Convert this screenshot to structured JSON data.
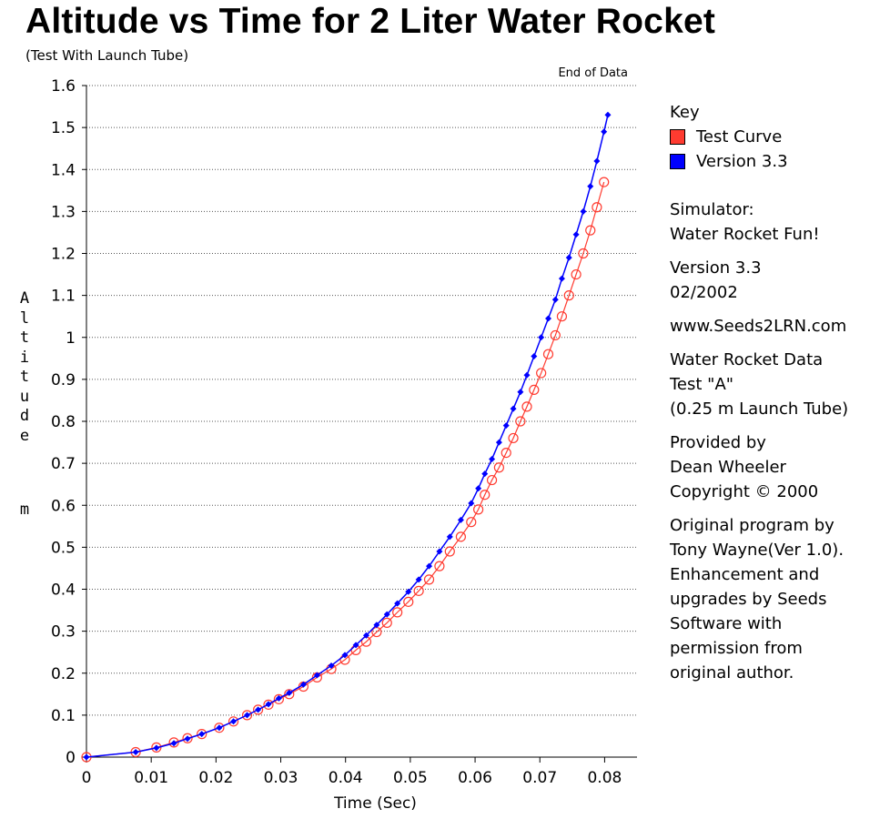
{
  "chart_data": {
    "type": "scatter",
    "title": "Altitude vs Time for 2 Liter Water Rocket",
    "subtitle": "(Test With Launch Tube)",
    "xlabel": "Time (Sec)",
    "ylabel": "Altitude",
    "yunit": "m",
    "xlim": [
      0,
      0.085
    ],
    "ylim": [
      0,
      1.6
    ],
    "xticks": [
      "0",
      "0.01",
      "0.02",
      "0.03",
      "0.04",
      "0.05",
      "0.06",
      "0.07",
      "0.08"
    ],
    "yticks": [
      "0",
      "0.1",
      "0.2",
      "0.3",
      "0.4",
      "0.5",
      "0.6",
      "0.7",
      "0.8",
      "0.9",
      "1",
      "1.1",
      "1.2",
      "1.3",
      "1.4",
      "1.5",
      "1.6"
    ],
    "grid": "horizontal dotted",
    "annotation": "End of Data",
    "legend_title": "Key",
    "legend_position": "right",
    "series": [
      {
        "name": "Test Curve",
        "color": "#ff3b30",
        "marker": "open-circle",
        "x": [
          0,
          0.0076,
          0.0108,
          0.0135,
          0.0156,
          0.0178,
          0.0205,
          0.0227,
          0.0248,
          0.0265,
          0.0281,
          0.0297,
          0.0313,
          0.0335,
          0.0356,
          0.0378,
          0.0399,
          0.0416,
          0.0432,
          0.0448,
          0.0464,
          0.048,
          0.0497,
          0.0513,
          0.0529,
          0.0545,
          0.0561,
          0.0578,
          0.0594,
          0.0605,
          0.0615,
          0.0626,
          0.0637,
          0.0648,
          0.0659,
          0.067,
          0.068,
          0.0691,
          0.0702,
          0.0713,
          0.0724,
          0.0734,
          0.0745,
          0.0756,
          0.0767,
          0.0778,
          0.0788,
          0.0799
        ],
        "y": [
          0,
          0.012,
          0.023,
          0.035,
          0.045,
          0.055,
          0.07,
          0.085,
          0.1,
          0.113,
          0.125,
          0.138,
          0.15,
          0.168,
          0.19,
          0.21,
          0.232,
          0.255,
          0.275,
          0.298,
          0.32,
          0.345,
          0.37,
          0.396,
          0.423,
          0.455,
          0.49,
          0.525,
          0.56,
          0.59,
          0.625,
          0.66,
          0.69,
          0.725,
          0.76,
          0.8,
          0.835,
          0.875,
          0.915,
          0.96,
          1.005,
          1.05,
          1.1,
          1.15,
          1.2,
          1.255,
          1.31,
          1.37
        ]
      },
      {
        "name": "Version 3.3",
        "color": "#0000ff",
        "marker": "filled-diamond",
        "x": [
          0,
          0.0076,
          0.0108,
          0.0135,
          0.0156,
          0.0178,
          0.0205,
          0.0227,
          0.0248,
          0.0265,
          0.0281,
          0.0297,
          0.0313,
          0.0335,
          0.0356,
          0.0378,
          0.0399,
          0.0416,
          0.0432,
          0.0448,
          0.0464,
          0.048,
          0.0497,
          0.0513,
          0.0529,
          0.0545,
          0.0561,
          0.0578,
          0.0594,
          0.0605,
          0.0615,
          0.0626,
          0.0637,
          0.0648,
          0.0659,
          0.067,
          0.068,
          0.0691,
          0.0702,
          0.0713,
          0.0724,
          0.0734,
          0.0745,
          0.0756,
          0.0767,
          0.0778,
          0.0788,
          0.0799,
          0.0805
        ],
        "y": [
          0,
          0.012,
          0.022,
          0.033,
          0.044,
          0.055,
          0.07,
          0.085,
          0.1,
          0.113,
          0.126,
          0.14,
          0.153,
          0.173,
          0.195,
          0.218,
          0.243,
          0.267,
          0.29,
          0.315,
          0.34,
          0.366,
          0.394,
          0.423,
          0.455,
          0.49,
          0.525,
          0.565,
          0.605,
          0.64,
          0.675,
          0.71,
          0.75,
          0.79,
          0.83,
          0.87,
          0.91,
          0.955,
          1.0,
          1.045,
          1.09,
          1.14,
          1.19,
          1.245,
          1.3,
          1.36,
          1.42,
          1.49,
          1.53
        ]
      }
    ]
  },
  "notes": {
    "simulator": [
      "Simulator:",
      "Water Rocket Fun!"
    ],
    "version": [
      "Version 3.3",
      "02/2002"
    ],
    "website": "www.Seeds2LRN.com",
    "data_source": [
      "Water Rocket Data",
      "Test \"A\"",
      "(0.25 m Launch Tube)"
    ],
    "provided": [
      "Provided by",
      "Dean Wheeler",
      "Copyright © 2000"
    ],
    "credits": [
      "Original program by",
      "Tony Wayne(Ver 1.0).",
      "Enhancement and",
      "upgrades by Seeds",
      "Software with",
      "permission from",
      "original author."
    ]
  }
}
